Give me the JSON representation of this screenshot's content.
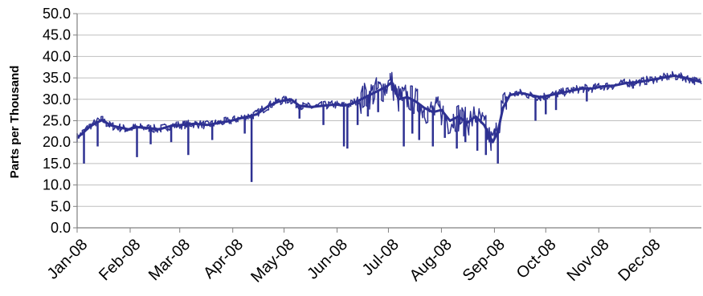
{
  "chart_data": {
    "type": "line",
    "title": "",
    "xlabel": "",
    "ylabel": "Parts per Thousand",
    "ylim": [
      0,
      50
    ],
    "yticks": [
      "0.0",
      "5.0",
      "10.0",
      "15.0",
      "20.0",
      "25.0",
      "30.0",
      "35.0",
      "40.0",
      "45.0",
      "50.0"
    ],
    "xticks": [
      "Jan-08",
      "Feb-08",
      "Mar-08",
      "Apr-08",
      "May-08",
      "Jun-08",
      "Jul-08",
      "Aug-08",
      "Sep-08",
      "Oct-08",
      "Nov-08",
      "Dec-08"
    ],
    "grid": "horizontal major lines",
    "legend": "none",
    "colors": {
      "series": "#2E3192",
      "grid": "#bfbfbf",
      "axis": "#808080"
    },
    "series": [
      {
        "x": [
          "2008-01-01",
          "2008-01-04",
          "2008-01-08",
          "2008-01-12",
          "2008-01-16",
          "2008-01-20",
          "2008-01-25",
          "2008-01-31",
          "2008-02-05",
          "2008-02-12",
          "2008-02-18",
          "2008-02-25",
          "2008-03-02",
          "2008-03-10",
          "2008-03-17",
          "2008-03-24",
          "2008-03-31",
          "2008-04-05",
          "2008-04-10",
          "2008-04-15",
          "2008-04-22",
          "2008-04-28",
          "2008-05-05",
          "2008-05-10",
          "2008-05-17",
          "2008-05-24",
          "2008-05-31",
          "2008-06-05",
          "2008-06-10",
          "2008-06-15",
          "2008-06-20",
          "2008-06-25",
          "2008-06-30",
          "2008-07-03",
          "2008-07-07",
          "2008-07-12",
          "2008-07-17",
          "2008-07-22",
          "2008-07-27",
          "2008-08-01",
          "2008-08-06",
          "2008-08-11",
          "2008-08-16",
          "2008-08-21",
          "2008-08-26",
          "2008-08-31",
          "2008-09-03",
          "2008-09-06",
          "2008-09-10",
          "2008-09-16",
          "2008-09-22",
          "2008-09-28",
          "2008-10-04",
          "2008-10-10",
          "2008-10-16",
          "2008-10-22",
          "2008-10-28",
          "2008-11-03",
          "2008-11-10",
          "2008-11-17",
          "2008-11-24",
          "2008-12-01",
          "2008-12-08",
          "2008-12-15",
          "2008-12-22",
          "2008-12-31"
        ],
        "values": [
          21.0,
          22.0,
          23.5,
          24.5,
          25.2,
          24.0,
          23.5,
          23.0,
          23.5,
          23.3,
          23.0,
          23.8,
          24.0,
          24.3,
          24.0,
          24.5,
          25.0,
          25.5,
          26.0,
          26.5,
          28.5,
          29.5,
          30.0,
          28.5,
          28.2,
          28.5,
          28.8,
          28.5,
          29.0,
          30.0,
          31.0,
          32.0,
          33.0,
          34.0,
          30.0,
          30.5,
          29.5,
          28.0,
          27.0,
          27.5,
          25.0,
          26.0,
          24.5,
          26.0,
          24.0,
          20.0,
          22.5,
          28.0,
          31.0,
          31.5,
          31.0,
          30.5,
          31.0,
          31.5,
          32.0,
          32.5,
          32.5,
          33.0,
          33.2,
          33.8,
          34.0,
          34.5,
          35.0,
          35.5,
          35.0,
          34.0
        ]
      }
    ],
    "excursions": [
      {
        "x": "2008-01-05",
        "y": 15.0
      },
      {
        "x": "2008-01-13",
        "y": 19.0
      },
      {
        "x": "2008-02-05",
        "y": 16.5
      },
      {
        "x": "2008-02-13",
        "y": 19.5
      },
      {
        "x": "2008-02-25",
        "y": 20.0
      },
      {
        "x": "2008-03-06",
        "y": 17.0
      },
      {
        "x": "2008-03-20",
        "y": 20.5
      },
      {
        "x": "2008-04-08",
        "y": 22.0
      },
      {
        "x": "2008-04-12",
        "y": 10.7
      },
      {
        "x": "2008-05-10",
        "y": 25.5
      },
      {
        "x": "2008-05-24",
        "y": 24.0
      },
      {
        "x": "2008-06-05",
        "y": 19.0
      },
      {
        "x": "2008-06-07",
        "y": 18.5
      },
      {
        "x": "2008-06-13",
        "y": 24.0
      },
      {
        "x": "2008-06-19",
        "y": 26.0
      },
      {
        "x": "2008-06-25",
        "y": 27.0
      },
      {
        "x": "2008-07-10",
        "y": 19.0
      },
      {
        "x": "2008-07-15",
        "y": 22.0
      },
      {
        "x": "2008-07-19",
        "y": 20.5
      },
      {
        "x": "2008-07-27",
        "y": 19.0
      },
      {
        "x": "2008-08-03",
        "y": 21.0
      },
      {
        "x": "2008-08-10",
        "y": 18.5
      },
      {
        "x": "2008-08-15",
        "y": 20.0
      },
      {
        "x": "2008-08-22",
        "y": 18.0
      },
      {
        "x": "2008-08-27",
        "y": 17.0
      },
      {
        "x": "2008-09-03",
        "y": 15.0
      },
      {
        "x": "2008-09-25",
        "y": 25.0
      },
      {
        "x": "2008-10-01",
        "y": 26.5
      },
      {
        "x": "2008-10-07",
        "y": 27.5
      },
      {
        "x": "2008-10-25",
        "y": 29.5
      },
      {
        "x": "2008-11-21",
        "y": 32.5
      }
    ]
  }
}
